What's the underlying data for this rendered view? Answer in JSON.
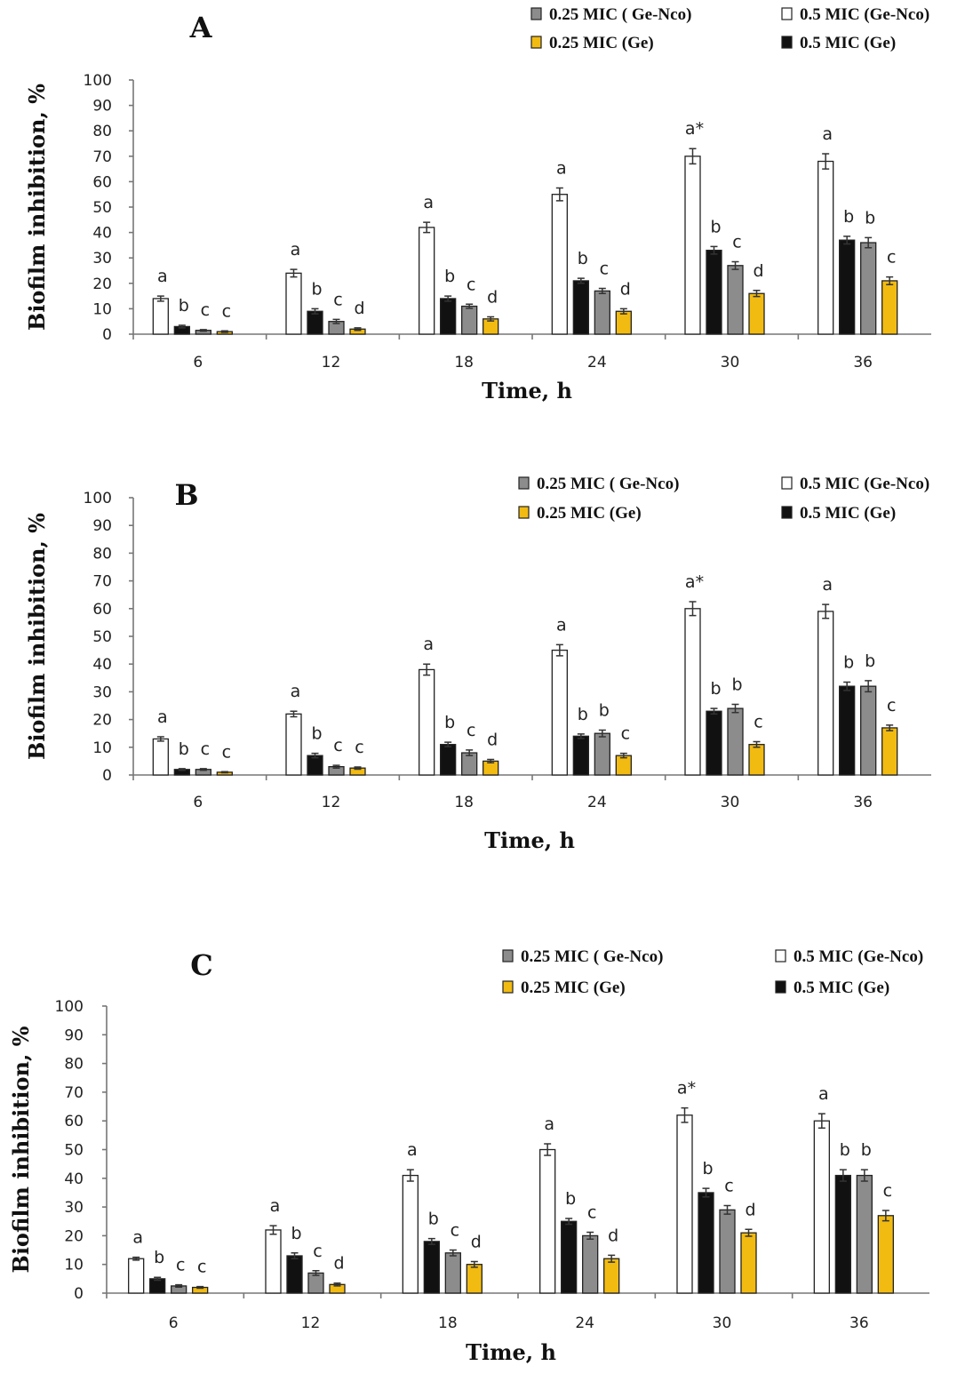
{
  "figure": {
    "legend": {
      "gray_label": "0.25 MIC ( Ge-Nco)",
      "white_label": "0.5 MIC (Ge-Nco)",
      "yellow_label": "0.25 MIC  (Ge)",
      "black_label": "0.5 MIC (Ge)"
    },
    "colors": {
      "white": "#ffffff",
      "black": "#111111",
      "gray": "#8c8c8c",
      "yellow": "#f2bb12"
    }
  },
  "chart_data": [
    {
      "type": "bar",
      "title": "A",
      "xlabel": "Time, h",
      "ylabel": "Biofilm inhibition, %",
      "ylim": [
        0,
        100
      ],
      "yticks": [
        "0",
        "10",
        "20",
        "30",
        "40",
        "50",
        "60",
        "70",
        "80",
        "90",
        "100"
      ],
      "categories": [
        "6",
        "12",
        "18",
        "24",
        "30",
        "36"
      ],
      "series": [
        {
          "name": "0.5 MIC (Ge-Nco)",
          "color": "white",
          "values": [
            14,
            24,
            42,
            55,
            70,
            68
          ],
          "errors": [
            1,
            1.5,
            2,
            2.5,
            3,
            3
          ],
          "letters": [
            "a",
            "a",
            "a",
            "a",
            "a*",
            "a"
          ]
        },
        {
          "name": "0.5 MIC (Ge)",
          "color": "black",
          "values": [
            3,
            9,
            14,
            21,
            33,
            37
          ],
          "errors": [
            0.5,
            1,
            1,
            1,
            1.5,
            1.5
          ],
          "letters": [
            "b",
            "b",
            "b",
            "b",
            "b",
            "b"
          ]
        },
        {
          "name": "0.25 MIC ( Ge-Nco)",
          "color": "gray",
          "values": [
            1.5,
            5,
            11,
            17,
            27,
            36
          ],
          "errors": [
            0.3,
            0.8,
            0.8,
            1,
            1.5,
            2
          ],
          "letters": [
            "c",
            "c",
            "c",
            "c",
            "c",
            "b"
          ]
        },
        {
          "name": "0.25 MIC  (Ge)",
          "color": "yellow",
          "values": [
            1,
            2,
            6,
            9,
            16,
            21
          ],
          "errors": [
            0.3,
            0.5,
            0.8,
            1,
            1.2,
            1.5
          ],
          "letters": [
            "c",
            "d",
            "d",
            "d",
            "d",
            "c"
          ]
        }
      ]
    },
    {
      "type": "bar",
      "title": "B",
      "xlabel": "Time, h",
      "ylabel": "Biofilm inhibition, %",
      "ylim": [
        0,
        100
      ],
      "yticks": [
        "0",
        "10",
        "20",
        "30",
        "40",
        "50",
        "60",
        "70",
        "80",
        "90",
        "100"
      ],
      "categories": [
        "6",
        "12",
        "18",
        "24",
        "30",
        "36"
      ],
      "series": [
        {
          "name": "0.5 MIC (Ge-Nco)",
          "color": "white",
          "values": [
            13,
            22,
            38,
            45,
            60,
            59
          ],
          "errors": [
            0.8,
            1,
            2,
            2,
            2.5,
            2.5
          ],
          "letters": [
            "a",
            "a",
            "a",
            "a",
            "a*",
            "a"
          ]
        },
        {
          "name": "0.5 MIC (Ge)",
          "color": "black",
          "values": [
            2,
            7,
            11,
            14,
            23,
            32
          ],
          "errors": [
            0.3,
            0.8,
            0.8,
            0.8,
            1,
            1.5
          ],
          "letters": [
            "b",
            "b",
            "b",
            "b",
            "b",
            "b"
          ]
        },
        {
          "name": "0.25 MIC ( Ge-Nco)",
          "color": "gray",
          "values": [
            2,
            3,
            8,
            15,
            24,
            32
          ],
          "errors": [
            0.3,
            0.5,
            1,
            1.2,
            1.5,
            2
          ],
          "letters": [
            "c",
            "c",
            "c",
            "b",
            "b",
            "b"
          ]
        },
        {
          "name": "0.25 MIC  (Ge)",
          "color": "yellow",
          "values": [
            1,
            2.5,
            5,
            7,
            11,
            17
          ],
          "errors": [
            0.2,
            0.4,
            0.6,
            0.8,
            1,
            1
          ],
          "letters": [
            "c",
            "c",
            "d",
            "c",
            "c",
            "c"
          ]
        }
      ]
    },
    {
      "type": "bar",
      "title": "C",
      "xlabel": "Time, h",
      "ylabel": "Biofilm inhibition, %",
      "ylim": [
        0,
        100
      ],
      "yticks": [
        "0",
        "10",
        "20",
        "30",
        "40",
        "50",
        "60",
        "70",
        "80",
        "90",
        "100"
      ],
      "categories": [
        "6",
        "12",
        "18",
        "24",
        "30",
        "36"
      ],
      "series": [
        {
          "name": "0.5 MIC (Ge-Nco)",
          "color": "white",
          "values": [
            12,
            22,
            41,
            50,
            62,
            60
          ],
          "errors": [
            0.5,
            1.5,
            2,
            2,
            2.5,
            2.5
          ],
          "letters": [
            "a",
            "a",
            "a",
            "a",
            "a*",
            "a"
          ]
        },
        {
          "name": "0.5 MIC (Ge)",
          "color": "black",
          "values": [
            5,
            13,
            18,
            25,
            35,
            41
          ],
          "errors": [
            0.5,
            1,
            1,
            1,
            1.5,
            2
          ],
          "letters": [
            "b",
            "b",
            "b",
            "b",
            "b",
            "b"
          ]
        },
        {
          "name": "0.25 MIC ( Ge-Nco)",
          "color": "gray",
          "values": [
            2.5,
            7,
            14,
            20,
            29,
            41
          ],
          "errors": [
            0.4,
            0.8,
            1,
            1.2,
            1.5,
            2
          ],
          "letters": [
            "c",
            "c",
            "c",
            "c",
            "c",
            "b"
          ]
        },
        {
          "name": "0.25 MIC  (Ge)",
          "color": "yellow",
          "values": [
            2,
            3,
            10,
            12,
            21,
            27
          ],
          "errors": [
            0.3,
            0.5,
            1,
            1.2,
            1.2,
            1.8
          ],
          "letters": [
            "c",
            "d",
            "d",
            "d",
            "d",
            "c"
          ]
        }
      ]
    }
  ]
}
